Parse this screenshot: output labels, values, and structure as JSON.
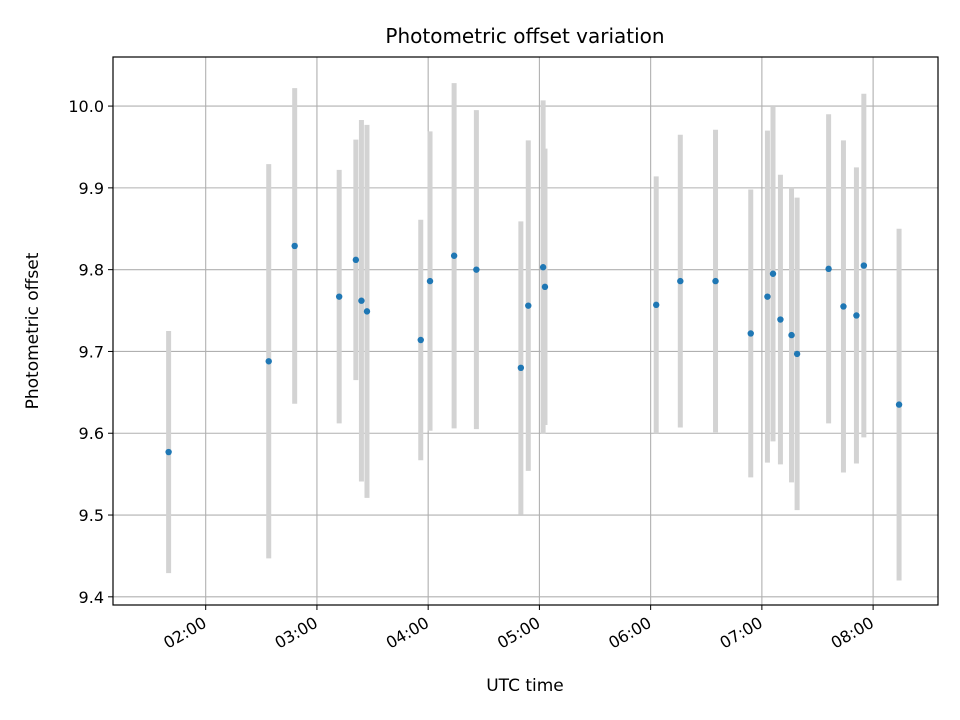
{
  "chart_data": {
    "type": "scatter",
    "title": "Photometric offset variation",
    "xlabel": "UTC time",
    "ylabel": "Photometric offset",
    "grid": true,
    "xlim": [
      "01:10",
      "08:35"
    ],
    "ylim": [
      9.39,
      10.06
    ],
    "x_ticks": [
      "02:00",
      "03:00",
      "04:00",
      "05:00",
      "06:00",
      "07:00",
      "08:00"
    ],
    "y_ticks": [
      "9.4",
      "9.5",
      "9.6",
      "9.7",
      "9.8",
      "9.9",
      "10.0"
    ],
    "colors": {
      "point": "#1f77b4",
      "errorbar": "#d3d3d3",
      "grid": "#b0b0b0"
    },
    "points": [
      {
        "x": "01:40",
        "y": 9.577,
        "err": 0.148
      },
      {
        "x": "02:34",
        "y": 9.688,
        "err": 0.241
      },
      {
        "x": "02:48",
        "y": 9.829,
        "err": 0.193
      },
      {
        "x": "03:12",
        "y": 9.767,
        "err": 0.155
      },
      {
        "x": "03:21",
        "y": 9.812,
        "err": 0.147
      },
      {
        "x": "03:24",
        "y": 9.762,
        "err": 0.221
      },
      {
        "x": "03:27",
        "y": 9.749,
        "err": 0.228
      },
      {
        "x": "03:56",
        "y": 9.714,
        "err": 0.147
      },
      {
        "x": "04:01",
        "y": 9.786,
        "err": 0.183
      },
      {
        "x": "04:14",
        "y": 9.817,
        "err": 0.211
      },
      {
        "x": "04:26",
        "y": 9.8,
        "err": 0.195
      },
      {
        "x": "04:50",
        "y": 9.68,
        "err": 0.179
      },
      {
        "x": "04:54",
        "y": 9.756,
        "err": 0.202
      },
      {
        "x": "05:02",
        "y": 9.803,
        "err": 0.204
      },
      {
        "x": "05:03",
        "y": 9.779,
        "err": 0.169
      },
      {
        "x": "06:03",
        "y": 9.757,
        "err": 0.157
      },
      {
        "x": "06:16",
        "y": 9.786,
        "err": 0.179
      },
      {
        "x": "06:35",
        "y": 9.786,
        "err": 0.185
      },
      {
        "x": "06:54",
        "y": 9.722,
        "err": 0.176
      },
      {
        "x": "07:03",
        "y": 9.767,
        "err": 0.203
      },
      {
        "x": "07:06",
        "y": 9.795,
        "err": 0.205
      },
      {
        "x": "07:10",
        "y": 9.739,
        "err": 0.177
      },
      {
        "x": "07:16",
        "y": 9.72,
        "err": 0.18
      },
      {
        "x": "07:19",
        "y": 9.697,
        "err": 0.191
      },
      {
        "x": "07:36",
        "y": 9.801,
        "err": 0.189
      },
      {
        "x": "07:44",
        "y": 9.755,
        "err": 0.203
      },
      {
        "x": "07:51",
        "y": 9.744,
        "err": 0.181
      },
      {
        "x": "07:55",
        "y": 9.805,
        "err": 0.21
      },
      {
        "x": "08:14",
        "y": 9.635,
        "err": 0.215
      }
    ]
  }
}
